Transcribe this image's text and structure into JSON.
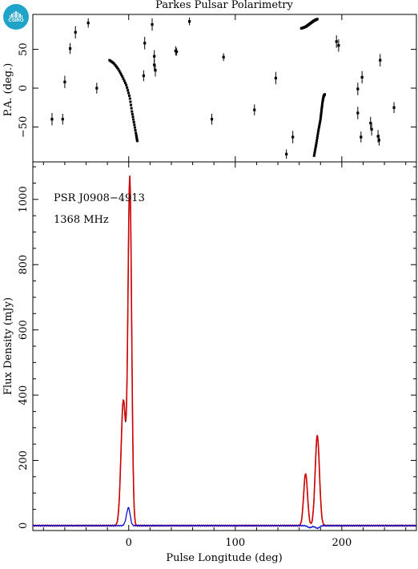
{
  "chart_data": [
    {
      "type": "scatter",
      "panel": "position-angle",
      "title": "Parkes Pulsar Polarimetry",
      "ylabel": "P.A. (deg.)",
      "xlim": [
        -90,
        270
      ],
      "ylim": [
        -95,
        95
      ],
      "yticks": [
        -50,
        0,
        50
      ],
      "points": [
        {
          "x": -72,
          "y": -40,
          "err": 8
        },
        {
          "x": -62,
          "y": -40,
          "err": 7
        },
        {
          "x": -60,
          "y": 8,
          "err": 8
        },
        {
          "x": -55,
          "y": 51,
          "err": 7
        },
        {
          "x": -50,
          "y": 72,
          "err": 8
        },
        {
          "x": -38,
          "y": 84,
          "err": 6
        },
        {
          "x": -30,
          "y": 0,
          "err": 7
        },
        {
          "x": 15,
          "y": 58,
          "err": 8
        },
        {
          "x": 14,
          "y": 16,
          "err": 7
        },
        {
          "x": 22,
          "y": 82,
          "err": 8
        },
        {
          "x": 24,
          "y": 41,
          "err": 8
        },
        {
          "x": 25,
          "y": 23,
          "err": 8
        },
        {
          "x": 24,
          "y": 30,
          "err": 7
        },
        {
          "x": 44,
          "y": 48,
          "err": 6
        },
        {
          "x": 45,
          "y": 47,
          "err": 5
        },
        {
          "x": 57,
          "y": 86,
          "err": 5
        },
        {
          "x": 78,
          "y": -40,
          "err": 7
        },
        {
          "x": 89,
          "y": 40,
          "err": 5
        },
        {
          "x": 118,
          "y": -28,
          "err": 7
        },
        {
          "x": 138,
          "y": 13,
          "err": 8
        },
        {
          "x": 148,
          "y": -85,
          "err": 6
        },
        {
          "x": 154,
          "y": -63,
          "err": 8
        },
        {
          "x": 195,
          "y": 60,
          "err": 8
        },
        {
          "x": 197,
          "y": 55,
          "err": 8
        },
        {
          "x": 215,
          "y": -1,
          "err": 8
        },
        {
          "x": 215,
          "y": -32,
          "err": 8
        },
        {
          "x": 218,
          "y": -63,
          "err": 7
        },
        {
          "x": 219,
          "y": 14,
          "err": 8
        },
        {
          "x": 227,
          "y": -45,
          "err": 8
        },
        {
          "x": 228,
          "y": -53,
          "err": 8
        },
        {
          "x": 234,
          "y": -62,
          "err": 8
        },
        {
          "x": 235,
          "y": -67,
          "err": 7
        },
        {
          "x": 236,
          "y": 36,
          "err": 8
        },
        {
          "x": 249,
          "y": -25,
          "err": 7
        }
      ],
      "curves": [
        {
          "x": [
            -18,
            -14,
            -10,
            -6,
            -2,
            1,
            3,
            5,
            7,
            8
          ],
          "y": [
            36,
            32,
            25,
            15,
            3,
            -12,
            -30,
            -45,
            -60,
            -68
          ]
        },
        {
          "x": [
            174,
            176,
            178,
            180,
            181,
            182,
            183,
            184
          ],
          "y": [
            -87,
            -72,
            -55,
            -40,
            -28,
            -17,
            -10,
            -8
          ]
        },
        {
          "x": [
            162,
            166,
            170,
            174,
            177
          ],
          "y": [
            77,
            79,
            83,
            87,
            89
          ]
        }
      ]
    },
    {
      "type": "line",
      "panel": "profile",
      "annotations": [
        "PSR J0908−4913",
        "1368 MHz"
      ],
      "xlabel": "Pulse Longitude (deg)",
      "ylabel": "Flux Density (mJy)",
      "xlim": [
        -90,
        270
      ],
      "ylim": [
        -15,
        1115
      ],
      "xticks": [
        0,
        100,
        200
      ],
      "yticks": [
        0,
        200,
        400,
        600,
        800,
        1000
      ],
      "components": {
        "total": [
          {
            "center": -5,
            "amp": 380,
            "sigma": 2.2
          },
          {
            "center": 1,
            "amp": 1060,
            "sigma": 1.7
          },
          {
            "center": 166,
            "amp": 158,
            "sigma": 1.8
          },
          {
            "center": 177,
            "amp": 275,
            "sigma": 2.0
          }
        ],
        "linear": [
          {
            "center": -5,
            "amp": 385,
            "sigma": 2.2
          },
          {
            "center": 1,
            "amp": 1065,
            "sigma": 1.7
          },
          {
            "center": 166,
            "amp": 160,
            "sigma": 1.8
          },
          {
            "center": 177,
            "amp": 277,
            "sigma": 2.0
          }
        ],
        "circular": [
          {
            "center": -2,
            "amp": 15,
            "sigma": 1.5
          },
          {
            "center": 0,
            "amp": 48,
            "sigma": 1.5
          },
          {
            "center": 170,
            "amp": -6,
            "sigma": 2.0
          },
          {
            "center": 177,
            "amp": -8,
            "sigma": 2.0
          }
        ]
      },
      "series": [
        {
          "key": "total",
          "color": "#000000"
        },
        {
          "key": "linear",
          "color": "#d00000"
        },
        {
          "key": "circular",
          "color": "#0000d0"
        }
      ]
    }
  ]
}
